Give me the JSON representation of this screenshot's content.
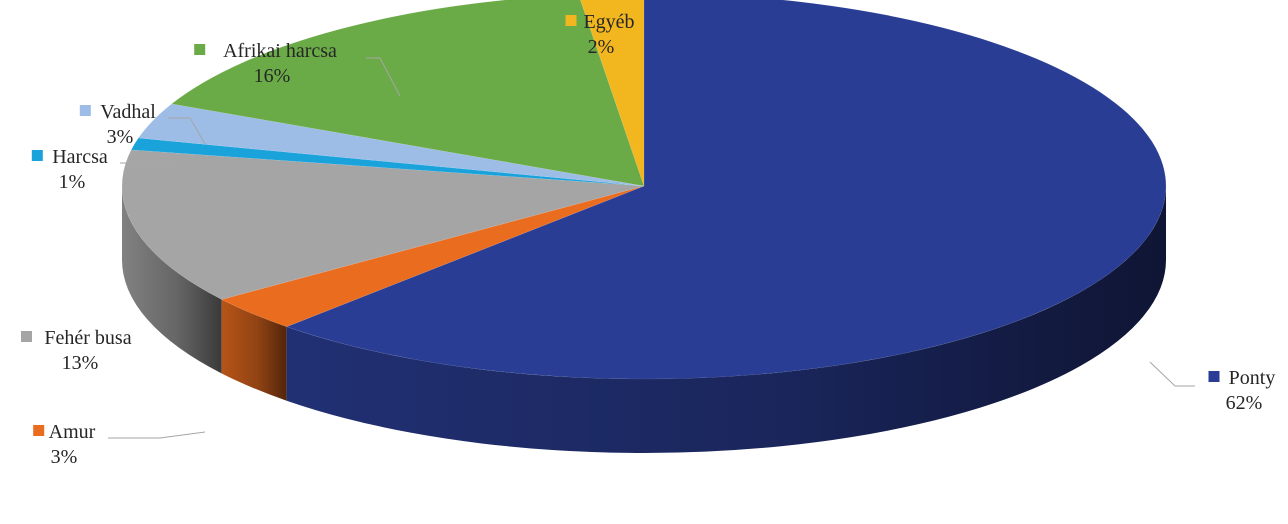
{
  "chart_data": {
    "type": "pie",
    "title": "",
    "categories": [
      "Ponty",
      "Amur",
      "Fehér busa",
      "Harcsa",
      "Vadhal",
      "Afrikai harcsa",
      "Egyéb"
    ],
    "values": [
      62,
      3,
      13,
      1,
      3,
      16,
      2
    ],
    "labels": [
      "62%",
      "3%",
      "13%",
      "1%",
      "3%",
      "16%",
      "2%"
    ],
    "colors": [
      "#2a3d94",
      "#ea6c1f",
      "#a5a5a5",
      "#1aa3db",
      "#9dbde6",
      "#6aab47",
      "#f2b61f"
    ],
    "start_angle_deg": 0,
    "direction": "clockwise",
    "style": "3d",
    "legend": "none"
  }
}
